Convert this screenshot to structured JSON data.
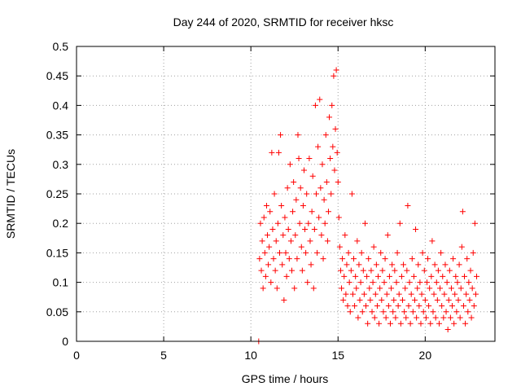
{
  "chart_data": {
    "type": "scatter",
    "title": "Day 244 of 2020, SRMTID for receiver hksc",
    "xlabel": "GPS time / hours",
    "ylabel": "SRMTID / TECUs",
    "xlim": [
      0,
      24
    ],
    "ylim": [
      0,
      0.5
    ],
    "xticks": [
      0,
      5,
      10,
      15,
      20
    ],
    "xtick_labels": [
      "0",
      "5",
      "10",
      "15",
      "20"
    ],
    "yticks": [
      0,
      0.05,
      0.1,
      0.15,
      0.2,
      0.25,
      0.3,
      0.35,
      0.4,
      0.45,
      0.5
    ],
    "ytick_labels": [
      "0",
      "0.05",
      "0.1",
      "0.15",
      "0.2",
      "0.25",
      "0.3",
      "0.35",
      "0.4",
      "0.45",
      "0.5"
    ],
    "grid": true,
    "marker": "+",
    "marker_color": "#ff0000",
    "series": [
      {
        "name": "SRMTID",
        "points": [
          [
            10.45,
            0.0
          ],
          [
            10.5,
            0.14
          ],
          [
            10.55,
            0.2
          ],
          [
            10.6,
            0.12
          ],
          [
            10.65,
            0.17
          ],
          [
            10.7,
            0.09
          ],
          [
            10.75,
            0.21
          ],
          [
            10.8,
            0.15
          ],
          [
            10.85,
            0.11
          ],
          [
            10.9,
            0.23
          ],
          [
            10.95,
            0.18
          ],
          [
            11.0,
            0.13
          ],
          [
            11.05,
            0.16
          ],
          [
            11.1,
            0.22
          ],
          [
            11.15,
            0.1
          ],
          [
            11.2,
            0.32
          ],
          [
            11.25,
            0.19
          ],
          [
            11.3,
            0.14
          ],
          [
            11.35,
            0.25
          ],
          [
            11.4,
            0.12
          ],
          [
            11.45,
            0.17
          ],
          [
            11.5,
            0.09
          ],
          [
            11.55,
            0.2
          ],
          [
            11.6,
            0.32
          ],
          [
            11.65,
            0.15
          ],
          [
            11.7,
            0.35
          ],
          [
            11.75,
            0.23
          ],
          [
            11.8,
            0.13
          ],
          [
            11.85,
            0.18
          ],
          [
            11.9,
            0.07
          ],
          [
            11.95,
            0.21
          ],
          [
            12.0,
            0.15
          ],
          [
            12.05,
            0.11
          ],
          [
            12.1,
            0.26
          ],
          [
            12.15,
            0.19
          ],
          [
            12.2,
            0.14
          ],
          [
            12.25,
            0.3
          ],
          [
            12.3,
            0.17
          ],
          [
            12.35,
            0.12
          ],
          [
            12.4,
            0.22
          ],
          [
            12.45,
            0.27
          ],
          [
            12.5,
            0.09
          ],
          [
            12.55,
            0.18
          ],
          [
            12.6,
            0.24
          ],
          [
            12.65,
            0.14
          ],
          [
            12.7,
            0.35
          ],
          [
            12.75,
            0.31
          ],
          [
            12.8,
            0.2
          ],
          [
            12.85,
            0.26
          ],
          [
            12.9,
            0.16
          ],
          [
            12.95,
            0.12
          ],
          [
            13.0,
            0.23
          ],
          [
            13.05,
            0.29
          ],
          [
            13.1,
            0.19
          ],
          [
            13.15,
            0.15
          ],
          [
            13.2,
            0.25
          ],
          [
            13.25,
            0.1
          ],
          [
            13.3,
            0.2
          ],
          [
            13.35,
            0.31
          ],
          [
            13.4,
            0.17
          ],
          [
            13.45,
            0.13
          ],
          [
            13.5,
            0.22
          ],
          [
            13.55,
            0.28
          ],
          [
            13.6,
            0.09
          ],
          [
            13.65,
            0.19
          ],
          [
            13.7,
            0.4
          ],
          [
            13.75,
            0.25
          ],
          [
            13.8,
            0.15
          ],
          [
            13.85,
            0.33
          ],
          [
            13.9,
            0.21
          ],
          [
            13.95,
            0.41
          ],
          [
            14.0,
            0.26
          ],
          [
            14.05,
            0.18
          ],
          [
            14.1,
            0.3
          ],
          [
            14.15,
            0.14
          ],
          [
            14.2,
            0.24
          ],
          [
            14.25,
            0.2
          ],
          [
            14.3,
            0.35
          ],
          [
            14.35,
            0.27
          ],
          [
            14.4,
            0.17
          ],
          [
            14.45,
            0.22
          ],
          [
            14.5,
            0.38
          ],
          [
            14.55,
            0.31
          ],
          [
            14.6,
            0.25
          ],
          [
            14.65,
            0.4
          ],
          [
            14.7,
            0.33
          ],
          [
            14.75,
            0.45
          ],
          [
            14.8,
            0.29
          ],
          [
            14.85,
            0.36
          ],
          [
            14.9,
            0.46
          ],
          [
            14.95,
            0.32
          ],
          [
            15.0,
            0.27
          ],
          [
            15.05,
            0.21
          ],
          [
            15.1,
            0.16
          ],
          [
            15.15,
            0.12
          ],
          [
            15.2,
            0.09
          ],
          [
            15.25,
            0.14
          ],
          [
            15.3,
            0.07
          ],
          [
            15.35,
            0.11
          ],
          [
            15.4,
            0.18
          ],
          [
            15.45,
            0.08
          ],
          [
            15.5,
            0.13
          ],
          [
            15.55,
            0.06
          ],
          [
            15.6,
            0.15
          ],
          [
            15.65,
            0.1
          ],
          [
            15.7,
            0.05
          ],
          [
            15.75,
            0.12
          ],
          [
            15.8,
            0.25
          ],
          [
            15.85,
            0.08
          ],
          [
            15.9,
            0.14
          ],
          [
            15.95,
            0.06
          ],
          [
            16.0,
            0.11
          ],
          [
            16.05,
            0.09
          ],
          [
            16.1,
            0.17
          ],
          [
            16.15,
            0.04
          ],
          [
            16.2,
            0.13
          ],
          [
            16.25,
            0.07
          ],
          [
            16.3,
            0.1
          ],
          [
            16.35,
            0.15
          ],
          [
            16.4,
            0.05
          ],
          [
            16.45,
            0.12
          ],
          [
            16.5,
            0.08
          ],
          [
            16.55,
            0.2
          ],
          [
            16.6,
            0.06
          ],
          [
            16.65,
            0.11
          ],
          [
            16.7,
            0.03
          ],
          [
            16.75,
            0.14
          ],
          [
            16.8,
            0.09
          ],
          [
            16.85,
            0.07
          ],
          [
            16.9,
            0.12
          ],
          [
            16.95,
            0.05
          ],
          [
            17.0,
            0.1
          ],
          [
            17.05,
            0.16
          ],
          [
            17.1,
            0.04
          ],
          [
            17.15,
            0.08
          ],
          [
            17.2,
            0.13
          ],
          [
            17.25,
            0.06
          ],
          [
            17.3,
            0.11
          ],
          [
            17.35,
            0.03
          ],
          [
            17.4,
            0.09
          ],
          [
            17.45,
            0.15
          ],
          [
            17.5,
            0.07
          ],
          [
            17.55,
            0.12
          ],
          [
            17.6,
            0.05
          ],
          [
            17.65,
            0.1
          ],
          [
            17.7,
            0.14
          ],
          [
            17.75,
            0.04
          ],
          [
            17.8,
            0.08
          ],
          [
            17.85,
            0.18
          ],
          [
            17.9,
            0.06
          ],
          [
            17.95,
            0.11
          ],
          [
            18.0,
            0.03
          ],
          [
            18.05,
            0.09
          ],
          [
            18.1,
            0.13
          ],
          [
            18.15,
            0.05
          ],
          [
            18.2,
            0.07
          ],
          [
            18.25,
            0.12
          ],
          [
            18.3,
            0.04
          ],
          [
            18.35,
            0.1
          ],
          [
            18.4,
            0.15
          ],
          [
            18.45,
            0.06
          ],
          [
            18.5,
            0.08
          ],
          [
            18.55,
            0.2
          ],
          [
            18.6,
            0.03
          ],
          [
            18.65,
            0.11
          ],
          [
            18.7,
            0.07
          ],
          [
            18.75,
            0.13
          ],
          [
            18.8,
            0.05
          ],
          [
            18.85,
            0.09
          ],
          [
            18.9,
            0.04
          ],
          [
            18.95,
            0.12
          ],
          [
            19.0,
            0.23
          ],
          [
            19.05,
            0.06
          ],
          [
            19.1,
            0.1
          ],
          [
            19.15,
            0.03
          ],
          [
            19.2,
            0.08
          ],
          [
            19.25,
            0.14
          ],
          [
            19.3,
            0.05
          ],
          [
            19.35,
            0.11
          ],
          [
            19.4,
            0.07
          ],
          [
            19.45,
            0.19
          ],
          [
            19.5,
            0.04
          ],
          [
            19.55,
            0.09
          ],
          [
            19.6,
            0.13
          ],
          [
            19.65,
            0.06
          ],
          [
            19.7,
            0.1
          ],
          [
            19.75,
            0.03
          ],
          [
            19.8,
            0.08
          ],
          [
            19.85,
            0.15
          ],
          [
            19.9,
            0.05
          ],
          [
            19.95,
            0.12
          ],
          [
            20.0,
            0.07
          ],
          [
            20.05,
            0.04
          ],
          [
            20.1,
            0.1
          ],
          [
            20.15,
            0.14
          ],
          [
            20.2,
            0.06
          ],
          [
            20.25,
            0.09
          ],
          [
            20.3,
            0.03
          ],
          [
            20.35,
            0.11
          ],
          [
            20.4,
            0.17
          ],
          [
            20.45,
            0.05
          ],
          [
            20.5,
            0.08
          ],
          [
            20.55,
            0.13
          ],
          [
            20.6,
            0.04
          ],
          [
            20.65,
            0.1
          ],
          [
            20.7,
            0.07
          ],
          [
            20.75,
            0.12
          ],
          [
            20.8,
            0.03
          ],
          [
            20.85,
            0.09
          ],
          [
            20.9,
            0.15
          ],
          [
            20.95,
            0.06
          ],
          [
            21.0,
            0.11
          ],
          [
            21.05,
            0.04
          ],
          [
            21.1,
            0.08
          ],
          [
            21.15,
            0.13
          ],
          [
            21.2,
            0.05
          ],
          [
            21.25,
            0.1
          ],
          [
            21.3,
            0.02
          ],
          [
            21.35,
            0.07
          ],
          [
            21.4,
            0.12
          ],
          [
            21.45,
            0.04
          ],
          [
            21.5,
            0.09
          ],
          [
            21.55,
            0.06
          ],
          [
            21.6,
            0.14
          ],
          [
            21.65,
            0.03
          ],
          [
            21.7,
            0.08
          ],
          [
            21.75,
            0.11
          ],
          [
            21.8,
            0.05
          ],
          [
            21.85,
            0.1
          ],
          [
            21.9,
            0.07
          ],
          [
            21.95,
            0.13
          ],
          [
            22.0,
            0.04
          ],
          [
            22.05,
            0.09
          ],
          [
            22.1,
            0.16
          ],
          [
            22.15,
            0.22
          ],
          [
            22.2,
            0.06
          ],
          [
            22.25,
            0.11
          ],
          [
            22.3,
            0.03
          ],
          [
            22.35,
            0.08
          ],
          [
            22.4,
            0.14
          ],
          [
            22.45,
            0.05
          ],
          [
            22.5,
            0.1
          ],
          [
            22.55,
            0.07
          ],
          [
            22.6,
            0.12
          ],
          [
            22.65,
            0.04
          ],
          [
            22.7,
            0.09
          ],
          [
            22.75,
            0.15
          ],
          [
            22.8,
            0.06
          ],
          [
            22.85,
            0.2
          ],
          [
            22.9,
            0.08
          ],
          [
            22.95,
            0.11
          ]
        ]
      }
    ]
  }
}
